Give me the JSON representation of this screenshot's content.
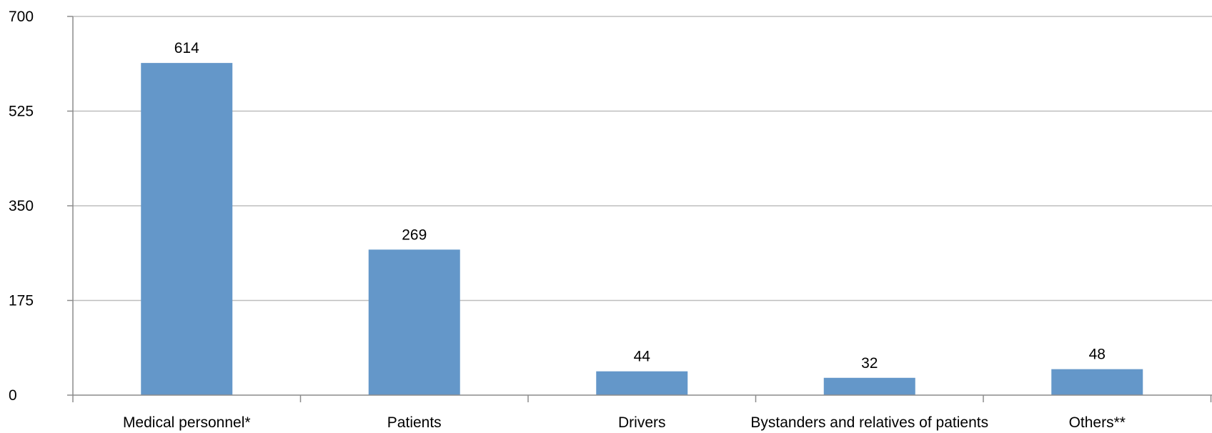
{
  "chart_data": {
    "type": "bar",
    "categories": [
      "Medical personnel*",
      "Patients",
      "Drivers",
      "Bystanders and relatives of patients",
      "Others**"
    ],
    "values": [
      614,
      269,
      44,
      32,
      48
    ],
    "title": "",
    "xlabel": "",
    "ylabel": "",
    "ylim": [
      0,
      700
    ],
    "yticks": [
      0,
      175,
      350,
      525,
      700
    ],
    "grid": true,
    "legend": "none",
    "bar_color": "#6497c9",
    "data_labels": [
      "614",
      "269",
      "44",
      "32",
      "48"
    ]
  }
}
